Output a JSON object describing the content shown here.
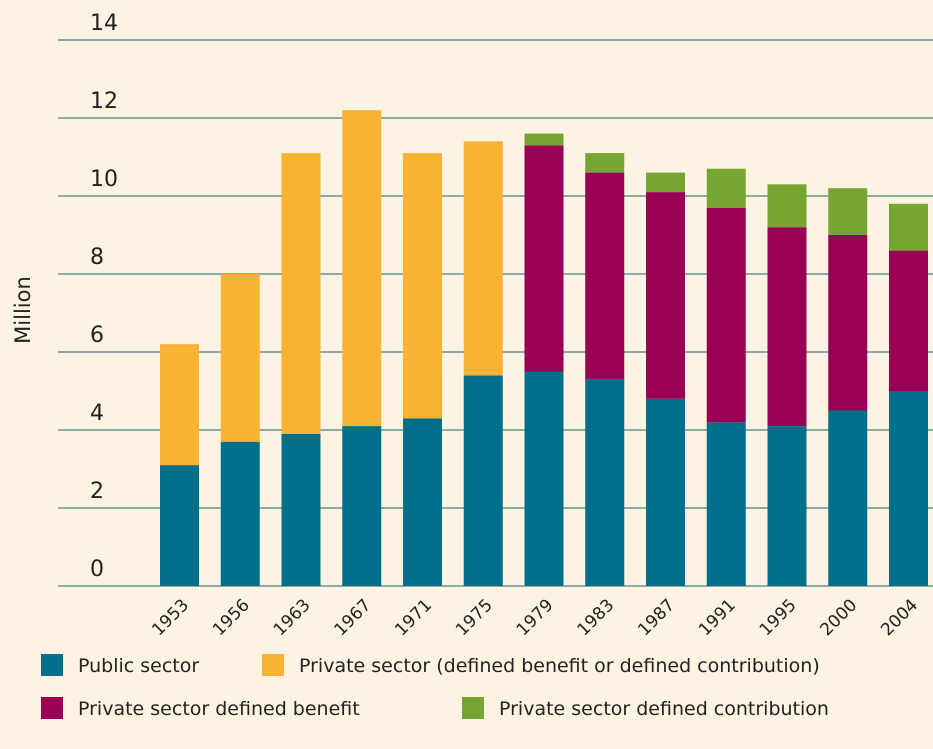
{
  "chart_data": {
    "type": "stacked_bar",
    "y_label": "Million",
    "categories": [
      "1953",
      "1956",
      "1963",
      "1967",
      "1971",
      "1975",
      "1979",
      "1983",
      "1987",
      "1991",
      "1995",
      "2000",
      "2004"
    ],
    "series": [
      {
        "name": "Public sector",
        "color": "#00708a",
        "values": [
          3.1,
          3.7,
          3.9,
          4.1,
          4.3,
          5.4,
          5.5,
          5.3,
          4.8,
          4.2,
          4.1,
          4.5,
          5.0
        ]
      },
      {
        "name": "Private sector (defined benefit or defined contribution)",
        "color": "#f9b232",
        "values": [
          3.1,
          4.3,
          7.2,
          8.1,
          6.8,
          6.0,
          null,
          null,
          null,
          null,
          null,
          null,
          null
        ]
      },
      {
        "name": "Private sector defined benefit",
        "color": "#990055",
        "values": [
          null,
          null,
          null,
          null,
          null,
          null,
          5.8,
          5.3,
          5.3,
          5.5,
          5.1,
          4.5,
          3.6
        ]
      },
      {
        "name": "Private sector defined contribution",
        "color": "#76a531",
        "values": [
          null,
          null,
          null,
          null,
          null,
          null,
          0.3,
          0.5,
          0.5,
          1.0,
          1.1,
          1.2,
          1.2
        ]
      }
    ],
    "ylim": [
      0,
      14
    ],
    "yticks": [
      0,
      2,
      4,
      6,
      8,
      10,
      12,
      14
    ],
    "grid": true,
    "grid_color": "#1f5f73"
  }
}
